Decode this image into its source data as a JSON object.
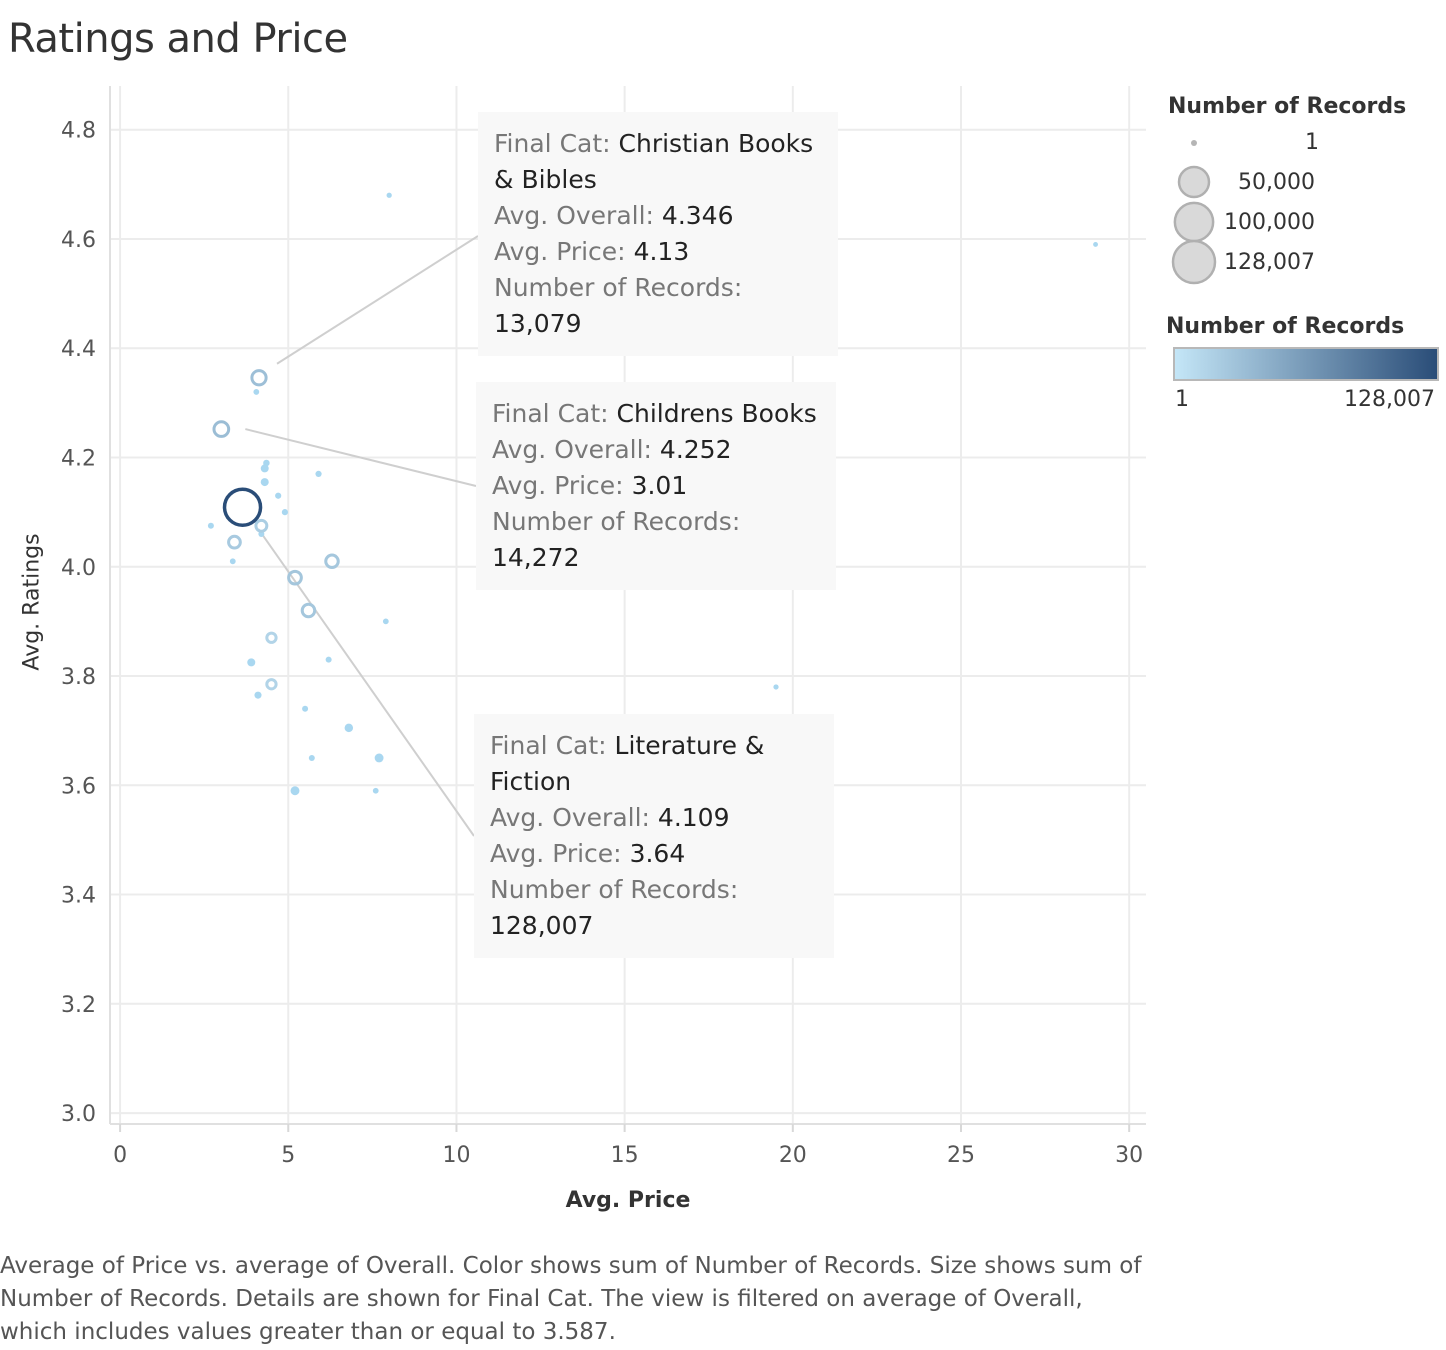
{
  "title": "Ratings and Price",
  "chart_data": {
    "type": "scatter",
    "title": "Ratings and Price",
    "xlabel": "Avg. Price",
    "ylabel": "Avg. Ratings",
    "xlim": [
      -0.3,
      30.5
    ],
    "ylim": [
      2.98,
      4.88
    ],
    "xticks": [
      "0",
      "5",
      "10",
      "15",
      "20",
      "25",
      "30"
    ],
    "yticks": [
      "3.0",
      "3.2",
      "3.4",
      "3.6",
      "3.8",
      "4.0",
      "4.2",
      "4.4",
      "4.6",
      "4.8"
    ],
    "grid": true,
    "size_field": "Number of Records",
    "color_field": "Number of Records",
    "color_range": [
      "#c4e6f7",
      "#2a4d78"
    ],
    "points": [
      {
        "x": 3.64,
        "y": 4.109,
        "records": 128007,
        "category": "Literature & Fiction"
      },
      {
        "x": 3.01,
        "y": 4.252,
        "records": 14272,
        "category": "Childrens Books"
      },
      {
        "x": 4.13,
        "y": 4.346,
        "records": 13079,
        "category": "Christian Books & Bibles"
      },
      {
        "x": 6.3,
        "y": 4.01,
        "records": 9000
      },
      {
        "x": 5.2,
        "y": 3.98,
        "records": 9500
      },
      {
        "x": 5.6,
        "y": 3.92,
        "records": 9000
      },
      {
        "x": 3.4,
        "y": 4.045,
        "records": 7500
      },
      {
        "x": 4.2,
        "y": 4.075,
        "records": 6000
      },
      {
        "x": 4.5,
        "y": 3.87,
        "records": 3500
      },
      {
        "x": 4.5,
        "y": 3.785,
        "records": 3500
      },
      {
        "x": 7.7,
        "y": 3.65,
        "records": 3000
      },
      {
        "x": 5.2,
        "y": 3.59,
        "records": 3000
      },
      {
        "x": 6.8,
        "y": 3.705,
        "records": 2500
      },
      {
        "x": 3.9,
        "y": 3.825,
        "records": 2000
      },
      {
        "x": 4.3,
        "y": 4.18,
        "records": 2000
      },
      {
        "x": 4.3,
        "y": 4.155,
        "records": 2000
      },
      {
        "x": 4.1,
        "y": 3.765,
        "records": 1200
      },
      {
        "x": 4.35,
        "y": 4.19,
        "records": 800
      },
      {
        "x": 4.7,
        "y": 4.13,
        "records": 600
      },
      {
        "x": 4.9,
        "y": 4.1,
        "records": 600
      },
      {
        "x": 5.9,
        "y": 4.17,
        "records": 600
      },
      {
        "x": 6.2,
        "y": 3.83,
        "records": 500
      },
      {
        "x": 5.5,
        "y": 3.74,
        "records": 500
      },
      {
        "x": 5.7,
        "y": 3.65,
        "records": 500
      },
      {
        "x": 7.6,
        "y": 3.59,
        "records": 400
      },
      {
        "x": 7.9,
        "y": 3.9,
        "records": 400
      },
      {
        "x": 2.7,
        "y": 4.075,
        "records": 500
      },
      {
        "x": 3.35,
        "y": 4.01,
        "records": 400
      },
      {
        "x": 4.05,
        "y": 4.32,
        "records": 400
      },
      {
        "x": 4.2,
        "y": 4.06,
        "records": 500
      },
      {
        "x": 8.0,
        "y": 4.68,
        "records": 200
      },
      {
        "x": 19.5,
        "y": 3.78,
        "records": 200
      },
      {
        "x": 29.0,
        "y": 4.59,
        "records": 100
      }
    ]
  },
  "legend_size": {
    "title": "Number of Records",
    "items": [
      {
        "label": "1",
        "value": 1
      },
      {
        "label": "50,000",
        "value": 50000
      },
      {
        "label": "100,000",
        "value": 100000
      },
      {
        "label": "128,007",
        "value": 128007
      }
    ]
  },
  "legend_color": {
    "title": "Number of Records",
    "min_label": "1",
    "max_label": "128,007"
  },
  "tooltips": [
    {
      "cat_key": "Final Cat:",
      "cat_val": "Christian Books",
      "cat_val2": "& Bibles",
      "overall_key": "Avg. Overall:",
      "overall_val": "4.346",
      "price_key": "Avg. Price:",
      "price_val": "4.13",
      "records_key": "Number of Records:",
      "records_val": "13,079"
    },
    {
      "cat_key": "Final Cat:",
      "cat_val": "Childrens Books",
      "cat_val2": "",
      "overall_key": "Avg. Overall:",
      "overall_val": "4.252",
      "price_key": "Avg. Price:",
      "price_val": "3.01",
      "records_key": "Number of Records:",
      "records_val": "14,272"
    },
    {
      "cat_key": "Final Cat:",
      "cat_val": "Literature &",
      "cat_val2": "Fiction",
      "overall_key": "Avg. Overall:",
      "overall_val": "4.109",
      "price_key": "Avg. Price:",
      "price_val": "3.64",
      "records_key": "Number of Records:",
      "records_val": "128,007"
    }
  ],
  "footnote": "Average of Price vs. average of Overall.  Color shows sum of Number of Records.  Size shows sum of Number of Records.  Details are shown for Final Cat. The view is filtered on average of Overall, which includes values greater than or equal to 3.587."
}
